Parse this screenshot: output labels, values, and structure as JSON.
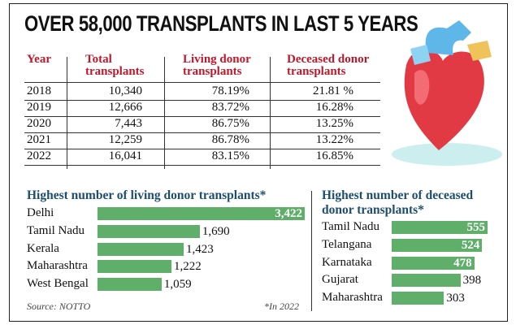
{
  "title": "OVER 58,000 TRANSPLANTS IN LAST 5 YEARS",
  "table": {
    "headers": [
      "Year",
      "Total transplants",
      "Living donor transplants",
      "Deceased donor transplants"
    ],
    "rows": [
      [
        "2018",
        "10,340",
        "78.19%",
        "21.81 %"
      ],
      [
        "2019",
        "12,666",
        "83.72%",
        "16.28%"
      ],
      [
        "2020",
        "7,443",
        "86.75%",
        "13.25%"
      ],
      [
        "2021",
        "12,259",
        "86.78%",
        "13.22%"
      ],
      [
        "2022",
        "16,041",
        "83.15%",
        "16.85%"
      ]
    ]
  },
  "chart_data": [
    {
      "type": "bar",
      "orientation": "horizontal",
      "title": "Highest number of living donor transplants*",
      "categories": [
        "Delhi",
        "Tamil Nadu",
        "Kerala",
        "Maharashtra",
        "West Bengal"
      ],
      "values": [
        3422,
        1690,
        1423,
        1222,
        1059
      ],
      "labels": [
        "3,422",
        "1,690",
        "1,423",
        "1,222",
        "1,059"
      ],
      "color": "#5fae6a"
    },
    {
      "type": "bar",
      "orientation": "horizontal",
      "title": "Highest number of deceased donor transplants*",
      "categories": [
        "Tamil Nadu",
        "Telangana",
        "Karnataka",
        "Gujarat",
        "Maharashtra"
      ],
      "values": [
        555,
        524,
        478,
        398,
        303
      ],
      "labels": [
        "555",
        "524",
        "478",
        "398",
        "303"
      ],
      "color": "#5fae6a"
    }
  ],
  "source": "Source: NOTTO",
  "footnote": "*In 2022",
  "illustration": "heart-icon"
}
